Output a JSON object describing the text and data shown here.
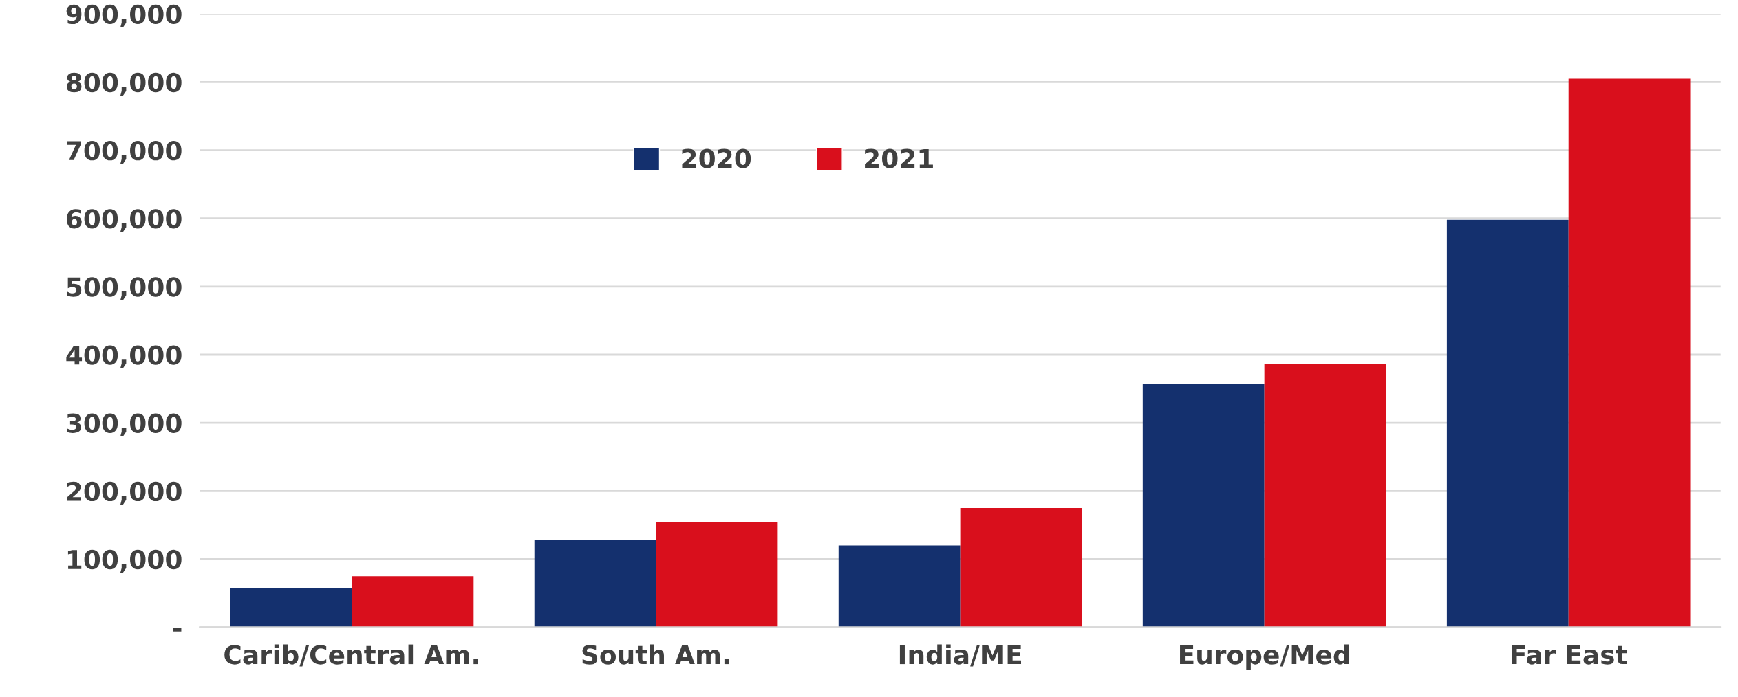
{
  "chart_data": {
    "type": "bar",
    "categories": [
      "Carib/Central Am.",
      "South Am.",
      "India/ME",
      "Europe/Med",
      "Far East"
    ],
    "series": [
      {
        "name": "2020",
        "color": "#14306e",
        "values": [
          57000,
          128000,
          120000,
          357000,
          598000
        ]
      },
      {
        "name": "2021",
        "color": "#d90f1c",
        "values": [
          75000,
          155000,
          175000,
          387000,
          805000
        ]
      }
    ],
    "ylim": [
      0,
      900000
    ],
    "yticks": [
      {
        "value": 0,
        "label": "-"
      },
      {
        "value": 100000,
        "label": "100,000"
      },
      {
        "value": 200000,
        "label": "200,000"
      },
      {
        "value": 300000,
        "label": "300,000"
      },
      {
        "value": 400000,
        "label": "400,000"
      },
      {
        "value": 500000,
        "label": "500,000"
      },
      {
        "value": 600000,
        "label": "600,000"
      },
      {
        "value": 700000,
        "label": "700,000"
      },
      {
        "value": 800000,
        "label": "800,000"
      },
      {
        "value": 900000,
        "label": "900,000"
      }
    ],
    "grid": "y",
    "legend": "top left"
  }
}
